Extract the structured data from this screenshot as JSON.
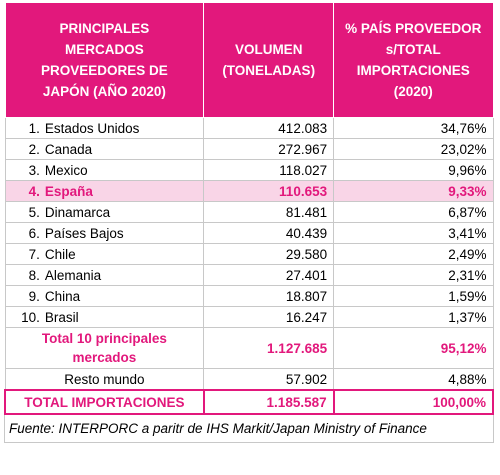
{
  "header": [
    "PRINCIPALES MERCADOS PROVEEDORES DE JAPÓN (AÑO 2020)",
    "VOLUMEN (TONELADAS)",
    "% PAÍS PROVEEDOR s/TOTAL IMPORTACIONES (2020)"
  ],
  "rows": [
    {
      "rank": "1.",
      "country": "Estados Unidos",
      "volume": "412.083",
      "share": "34,76%"
    },
    {
      "rank": "2.",
      "country": "Canada",
      "volume": "272.967",
      "share": "23,02%"
    },
    {
      "rank": "3.",
      "country": "Mexico",
      "volume": "118.027",
      "share": "9,96%"
    },
    {
      "rank": "4.",
      "country": "España",
      "volume": "110.653",
      "share": "9,33%"
    },
    {
      "rank": "5.",
      "country": "Dinamarca",
      "volume": "81.481",
      "share": "6,87%"
    },
    {
      "rank": "6.",
      "country": "Países Bajos",
      "volume": "40.439",
      "share": "3,41%"
    },
    {
      "rank": "7.",
      "country": "Chile",
      "volume": "29.580",
      "share": "2,49%"
    },
    {
      "rank": "8.",
      "country": "Alemania",
      "volume": "27.401",
      "share": "2,31%"
    },
    {
      "rank": "9.",
      "country": "China",
      "volume": "18.807",
      "share": "1,59%"
    },
    {
      "rank": "10.",
      "country": "Brasil",
      "volume": "16.247",
      "share": "1,37%"
    }
  ],
  "top10": {
    "label": "Total 10 principales mercados",
    "volume": "1.127.685",
    "share": "95,12%"
  },
  "rest": {
    "label": "Resto mundo",
    "volume": "57.902",
    "share": "4,88%"
  },
  "total": {
    "label": "TOTAL IMPORTACIONES",
    "volume": "1.185.587",
    "share": "100,00%"
  },
  "source": "Fuente: INTERPORC a paritr de IHS Markit/Japan Ministry of Finance"
}
